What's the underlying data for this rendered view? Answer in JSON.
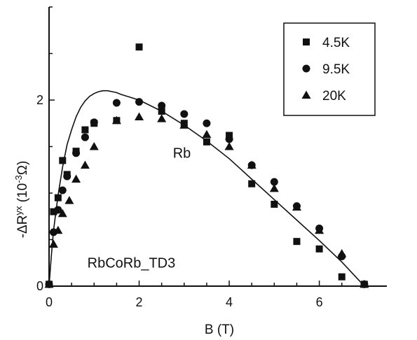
{
  "chart_data": {
    "type": "scatter",
    "xlabel": "B (T)",
    "ylabel": "-ΔR",
    "ylabel_sup": "yx",
    "ylabel_unit_open": " (10",
    "ylabel_unit_sup": "-3",
    "ylabel_unit_close": "Ω)",
    "xlim": [
      0,
      7.5
    ],
    "ylim": [
      0,
      3.0
    ],
    "x_ticks": [
      0,
      2,
      4,
      6
    ],
    "y_ticks": [
      0,
      2
    ],
    "grid": false,
    "legend_position": "top-right",
    "annotations": [
      {
        "text": "Rb",
        "x": 2.75,
        "y": 1.38
      },
      {
        "text": "RbCoRb_TD3",
        "x": 0.85,
        "y": 0.2
      }
    ],
    "series": [
      {
        "name": "4.5K",
        "marker": "square",
        "points": [
          [
            0.0,
            0.02
          ],
          [
            0.1,
            0.8
          ],
          [
            0.2,
            0.95
          ],
          [
            0.3,
            1.35
          ],
          [
            0.4,
            1.2
          ],
          [
            0.6,
            1.45
          ],
          [
            0.8,
            1.68
          ],
          [
            1.0,
            1.75
          ],
          [
            1.5,
            1.78
          ],
          [
            2.0,
            2.57
          ],
          [
            2.5,
            1.88
          ],
          [
            3.0,
            1.75
          ],
          [
            3.5,
            1.55
          ],
          [
            4.0,
            1.62
          ],
          [
            4.5,
            1.1
          ],
          [
            5.0,
            0.88
          ],
          [
            5.5,
            0.48
          ],
          [
            6.0,
            0.4
          ],
          [
            6.5,
            0.1
          ],
          [
            7.0,
            0.02
          ]
        ]
      },
      {
        "name": "9.5K",
        "marker": "circle",
        "points": [
          [
            0.0,
            0.02
          ],
          [
            0.1,
            0.58
          ],
          [
            0.2,
            0.82
          ],
          [
            0.3,
            1.03
          ],
          [
            0.4,
            1.18
          ],
          [
            0.6,
            1.43
          ],
          [
            0.8,
            1.6
          ],
          [
            1.0,
            1.76
          ],
          [
            1.5,
            1.97
          ],
          [
            2.0,
            1.98
          ],
          [
            2.5,
            1.94
          ],
          [
            3.0,
            1.85
          ],
          [
            3.5,
            1.75
          ],
          [
            4.0,
            1.58
          ],
          [
            4.5,
            1.3
          ],
          [
            5.0,
            1.12
          ],
          [
            5.5,
            0.86
          ],
          [
            6.0,
            0.62
          ],
          [
            6.5,
            0.32
          ],
          [
            7.0,
            0.02
          ]
        ]
      },
      {
        "name": "20K",
        "marker": "triangle",
        "points": [
          [
            0.0,
            0.02
          ],
          [
            0.1,
            0.45
          ],
          [
            0.2,
            0.6
          ],
          [
            0.3,
            0.78
          ],
          [
            0.45,
            0.92
          ],
          [
            0.6,
            1.15
          ],
          [
            0.8,
            1.3
          ],
          [
            1.0,
            1.5
          ],
          [
            1.5,
            1.78
          ],
          [
            2.0,
            1.82
          ],
          [
            2.5,
            1.8
          ],
          [
            3.0,
            1.73
          ],
          [
            3.5,
            1.63
          ],
          [
            4.0,
            1.5
          ],
          [
            4.5,
            1.3
          ],
          [
            5.0,
            1.05
          ],
          [
            5.5,
            0.85
          ],
          [
            6.0,
            0.6
          ],
          [
            6.5,
            0.35
          ],
          [
            7.0,
            0.02
          ]
        ]
      }
    ],
    "fit_curve": {
      "points": [
        [
          0.0,
          0.0
        ],
        [
          0.05,
          0.32
        ],
        [
          0.1,
          0.6
        ],
        [
          0.2,
          0.98
        ],
        [
          0.3,
          1.28
        ],
        [
          0.4,
          1.52
        ],
        [
          0.5,
          1.68
        ],
        [
          0.6,
          1.82
        ],
        [
          0.7,
          1.92
        ],
        [
          0.8,
          1.99
        ],
        [
          0.9,
          2.04
        ],
        [
          1.0,
          2.07
        ],
        [
          1.1,
          2.09
        ],
        [
          1.2,
          2.1
        ],
        [
          1.3,
          2.1
        ],
        [
          1.4,
          2.09
        ],
        [
          1.5,
          2.08
        ],
        [
          1.6,
          2.06
        ],
        [
          1.8,
          2.03
        ],
        [
          2.0,
          2.0
        ],
        [
          2.5,
          1.88
        ],
        [
          3.0,
          1.73
        ],
        [
          3.5,
          1.56
        ],
        [
          4.0,
          1.37
        ],
        [
          4.5,
          1.15
        ],
        [
          5.0,
          0.93
        ],
        [
          5.5,
          0.71
        ],
        [
          6.0,
          0.49
        ],
        [
          6.5,
          0.26
        ],
        [
          7.0,
          0.0
        ]
      ]
    }
  }
}
